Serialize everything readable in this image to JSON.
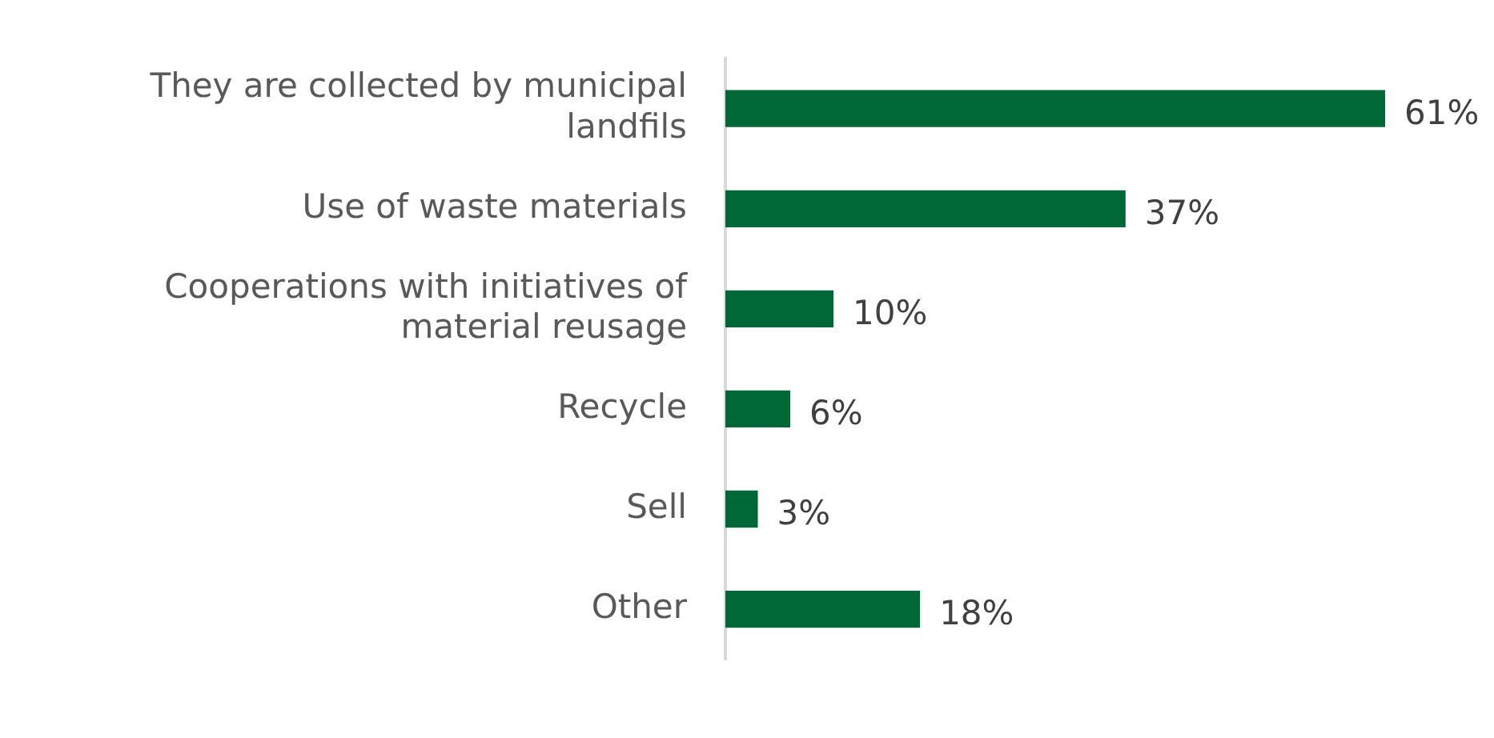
{
  "chart_data": {
    "type": "bar",
    "orientation": "horizontal",
    "tick_labels": "y",
    "categories": [
      "They are collected by municipal landfils",
      "Use of waste materials",
      "Cooperations with initiatives of material reusage",
      "Recycle",
      "Sell",
      "Other"
    ],
    "values": [
      61,
      37,
      10,
      6,
      3,
      18
    ],
    "value_labels": [
      "61%",
      "37%",
      "10%",
      "6%",
      "3%",
      "18%"
    ],
    "color": "#006837",
    "legend": false
  }
}
